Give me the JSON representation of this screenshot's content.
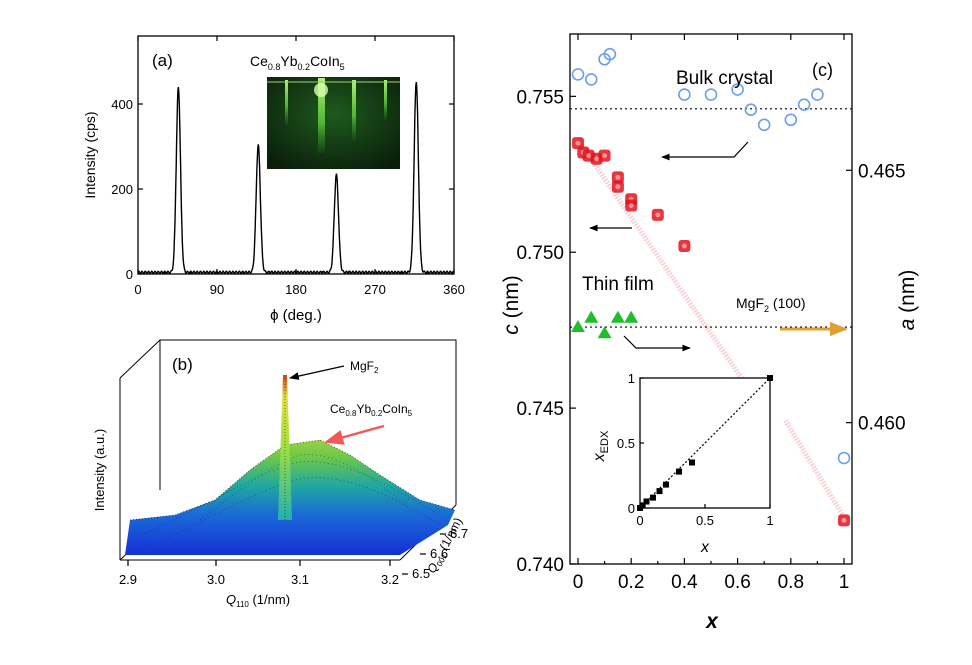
{
  "chart_data": [
    {
      "type": "line",
      "panel": "(a)",
      "inset_title": "Ce0.8Yb0.2CoIn5",
      "xlabel": "ϕ (deg.)",
      "ylabel": "Intensity (cps)",
      "xlim": [
        0,
        360
      ],
      "ylim": [
        0,
        560
      ],
      "xticks": [
        "0",
        "90",
        "180",
        "270",
        "360"
      ],
      "yticks": [
        "0",
        "200",
        "400"
      ],
      "peaks": [
        {
          "x": 46,
          "y": 435
        },
        {
          "x": 137,
          "y": 300
        },
        {
          "x": 226,
          "y": 230
        },
        {
          "x": 317,
          "y": 450
        }
      ]
    },
    {
      "type": "surface",
      "panel": "(b)",
      "xlabel": "Q110 (1/nm)",
      "ylabel": "Q001 (1/nm)",
      "zlabel": "Intensity (a.u.)",
      "xticks": [
        "2.9",
        "3.0",
        "3.1",
        "3.2"
      ],
      "yticks": [
        "6.5",
        "6.6",
        "6.7"
      ],
      "annotations": [
        "MgF2",
        "Ce0.8Yb0.2CoIn5"
      ]
    },
    {
      "type": "scatter",
      "panel": "(c)",
      "xlabel": "x",
      "ylabel_left": "c (nm)",
      "ylabel_right": "a (nm)",
      "xlim": [
        -0.03,
        1.03
      ],
      "ylim_left": [
        0.74,
        0.757
      ],
      "ylim_right": [
        0.4572,
        0.4677
      ],
      "xticks": [
        "0",
        "0.2",
        "0.4",
        "0.6",
        "0.8",
        "1"
      ],
      "yticks_left": [
        "0.740",
        "0.745",
        "0.750",
        "0.755"
      ],
      "yticks_right": [
        "0.460",
        "0.465"
      ],
      "annotations": [
        "Bulk crystal",
        "Thin film",
        "MgF2 (100)"
      ],
      "reference_lines": [
        {
          "axis": "left",
          "value": 0.7546,
          "label": "Bulk crystal"
        },
        {
          "axis": "left",
          "value": 0.7476,
          "label": "MgF2 (100)"
        }
      ],
      "series": [
        {
          "axis": "left",
          "marker": "filled-red-square",
          "values": [
            [
              0.0,
              0.7535
            ],
            [
              0.02,
              0.7532
            ],
            [
              0.04,
              0.7531
            ],
            [
              0.07,
              0.753
            ],
            [
              0.1,
              0.7531
            ],
            [
              0.15,
              0.7524
            ],
            [
              0.15,
              0.7521
            ],
            [
              0.2,
              0.7517
            ],
            [
              0.2,
              0.7515
            ],
            [
              0.3,
              0.7512
            ],
            [
              0.4,
              0.7502
            ],
            [
              1.0,
              0.7414
            ]
          ]
        },
        {
          "axis": "right",
          "marker": "open-blue-circle",
          "values": [
            [
              0.0,
              0.4669
            ],
            [
              0.05,
              0.4668
            ],
            [
              0.1,
              0.4672
            ],
            [
              0.12,
              0.4673
            ],
            [
              0.4,
              0.4665
            ],
            [
              0.5,
              0.4665
            ],
            [
              0.6,
              0.4666
            ],
            [
              0.65,
              0.4662
            ],
            [
              0.7,
              0.4659
            ],
            [
              0.8,
              0.466
            ],
            [
              0.85,
              0.4663
            ],
            [
              0.9,
              0.4665
            ],
            [
              1.0,
              0.4593
            ]
          ]
        },
        {
          "axis": "left",
          "marker": "green-triangle",
          "values": [
            [
              0.0,
              0.7476
            ],
            [
              0.05,
              0.7479
            ],
            [
              0.1,
              0.7474
            ],
            [
              0.15,
              0.7479
            ],
            [
              0.2,
              0.7479
            ]
          ]
        }
      ]
    },
    {
      "type": "scatter",
      "panel": "(c) inset",
      "xlabel": "x",
      "ylabel": "xEDX",
      "xlim": [
        0,
        1
      ],
      "ylim": [
        0,
        1
      ],
      "xticks": [
        "0",
        "0.5",
        "1"
      ],
      "yticks": [
        "0",
        "0.5",
        "1"
      ],
      "values": [
        [
          0,
          0
        ],
        [
          0.02,
          0.02
        ],
        [
          0.05,
          0.05
        ],
        [
          0.1,
          0.08
        ],
        [
          0.15,
          0.13
        ],
        [
          0.2,
          0.18
        ],
        [
          0.3,
          0.28
        ],
        [
          0.4,
          0.35
        ],
        [
          1,
          1
        ]
      ]
    }
  ],
  "labels": {
    "panel_a": "(a)",
    "panel_b": "(b)",
    "panel_c": "(c)",
    "a_ylabel": "Intensity (cps)",
    "a_xlabel": "ϕ (deg.)",
    "a_title_1": "Ce",
    "a_title_2": "0.8",
    "a_title_3": "Yb",
    "a_title_4": "0.2",
    "a_title_5": "CoIn",
    "a_title_6": "5",
    "b_zlabel": "Intensity (a.u.)",
    "b_xlabel_1": "Q",
    "b_xlabel_2": "110",
    "b_xlabel_3": " (1/nm)",
    "b_ylabel_1": "Q",
    "b_ylabel_2": "001",
    "b_ylabel_3": " (1/nm)",
    "b_mgf2_1": "MgF",
    "b_mgf2_2": "2",
    "b_film_1": "Ce",
    "b_film_2": "0.8",
    "b_film_3": "Yb",
    "b_film_4": "0.2",
    "b_film_5": "CoIn",
    "b_film_6": "5",
    "c_ylabel_left": "c",
    "c_ylabel_left_unit": " (nm)",
    "c_ylabel_right": "a",
    "c_ylabel_right_unit": " (nm)",
    "c_xlabel": "x",
    "c_bulk": "Bulk crystal",
    "c_thin": "Thin film",
    "c_mgf2_1": "MgF",
    "c_mgf2_2": "2",
    "c_mgf2_3": " (100)",
    "inset_ylabel_1": "x",
    "inset_ylabel_2": "EDX",
    "inset_xlabel": "x"
  },
  "colors": {
    "red_marker": "#e0141e",
    "blue_circle": "#6a9ef0",
    "green_triangle": "#1fbf2c",
    "mgf2_arrow": "#e0a030",
    "trend_line": "#f5a0a8"
  }
}
